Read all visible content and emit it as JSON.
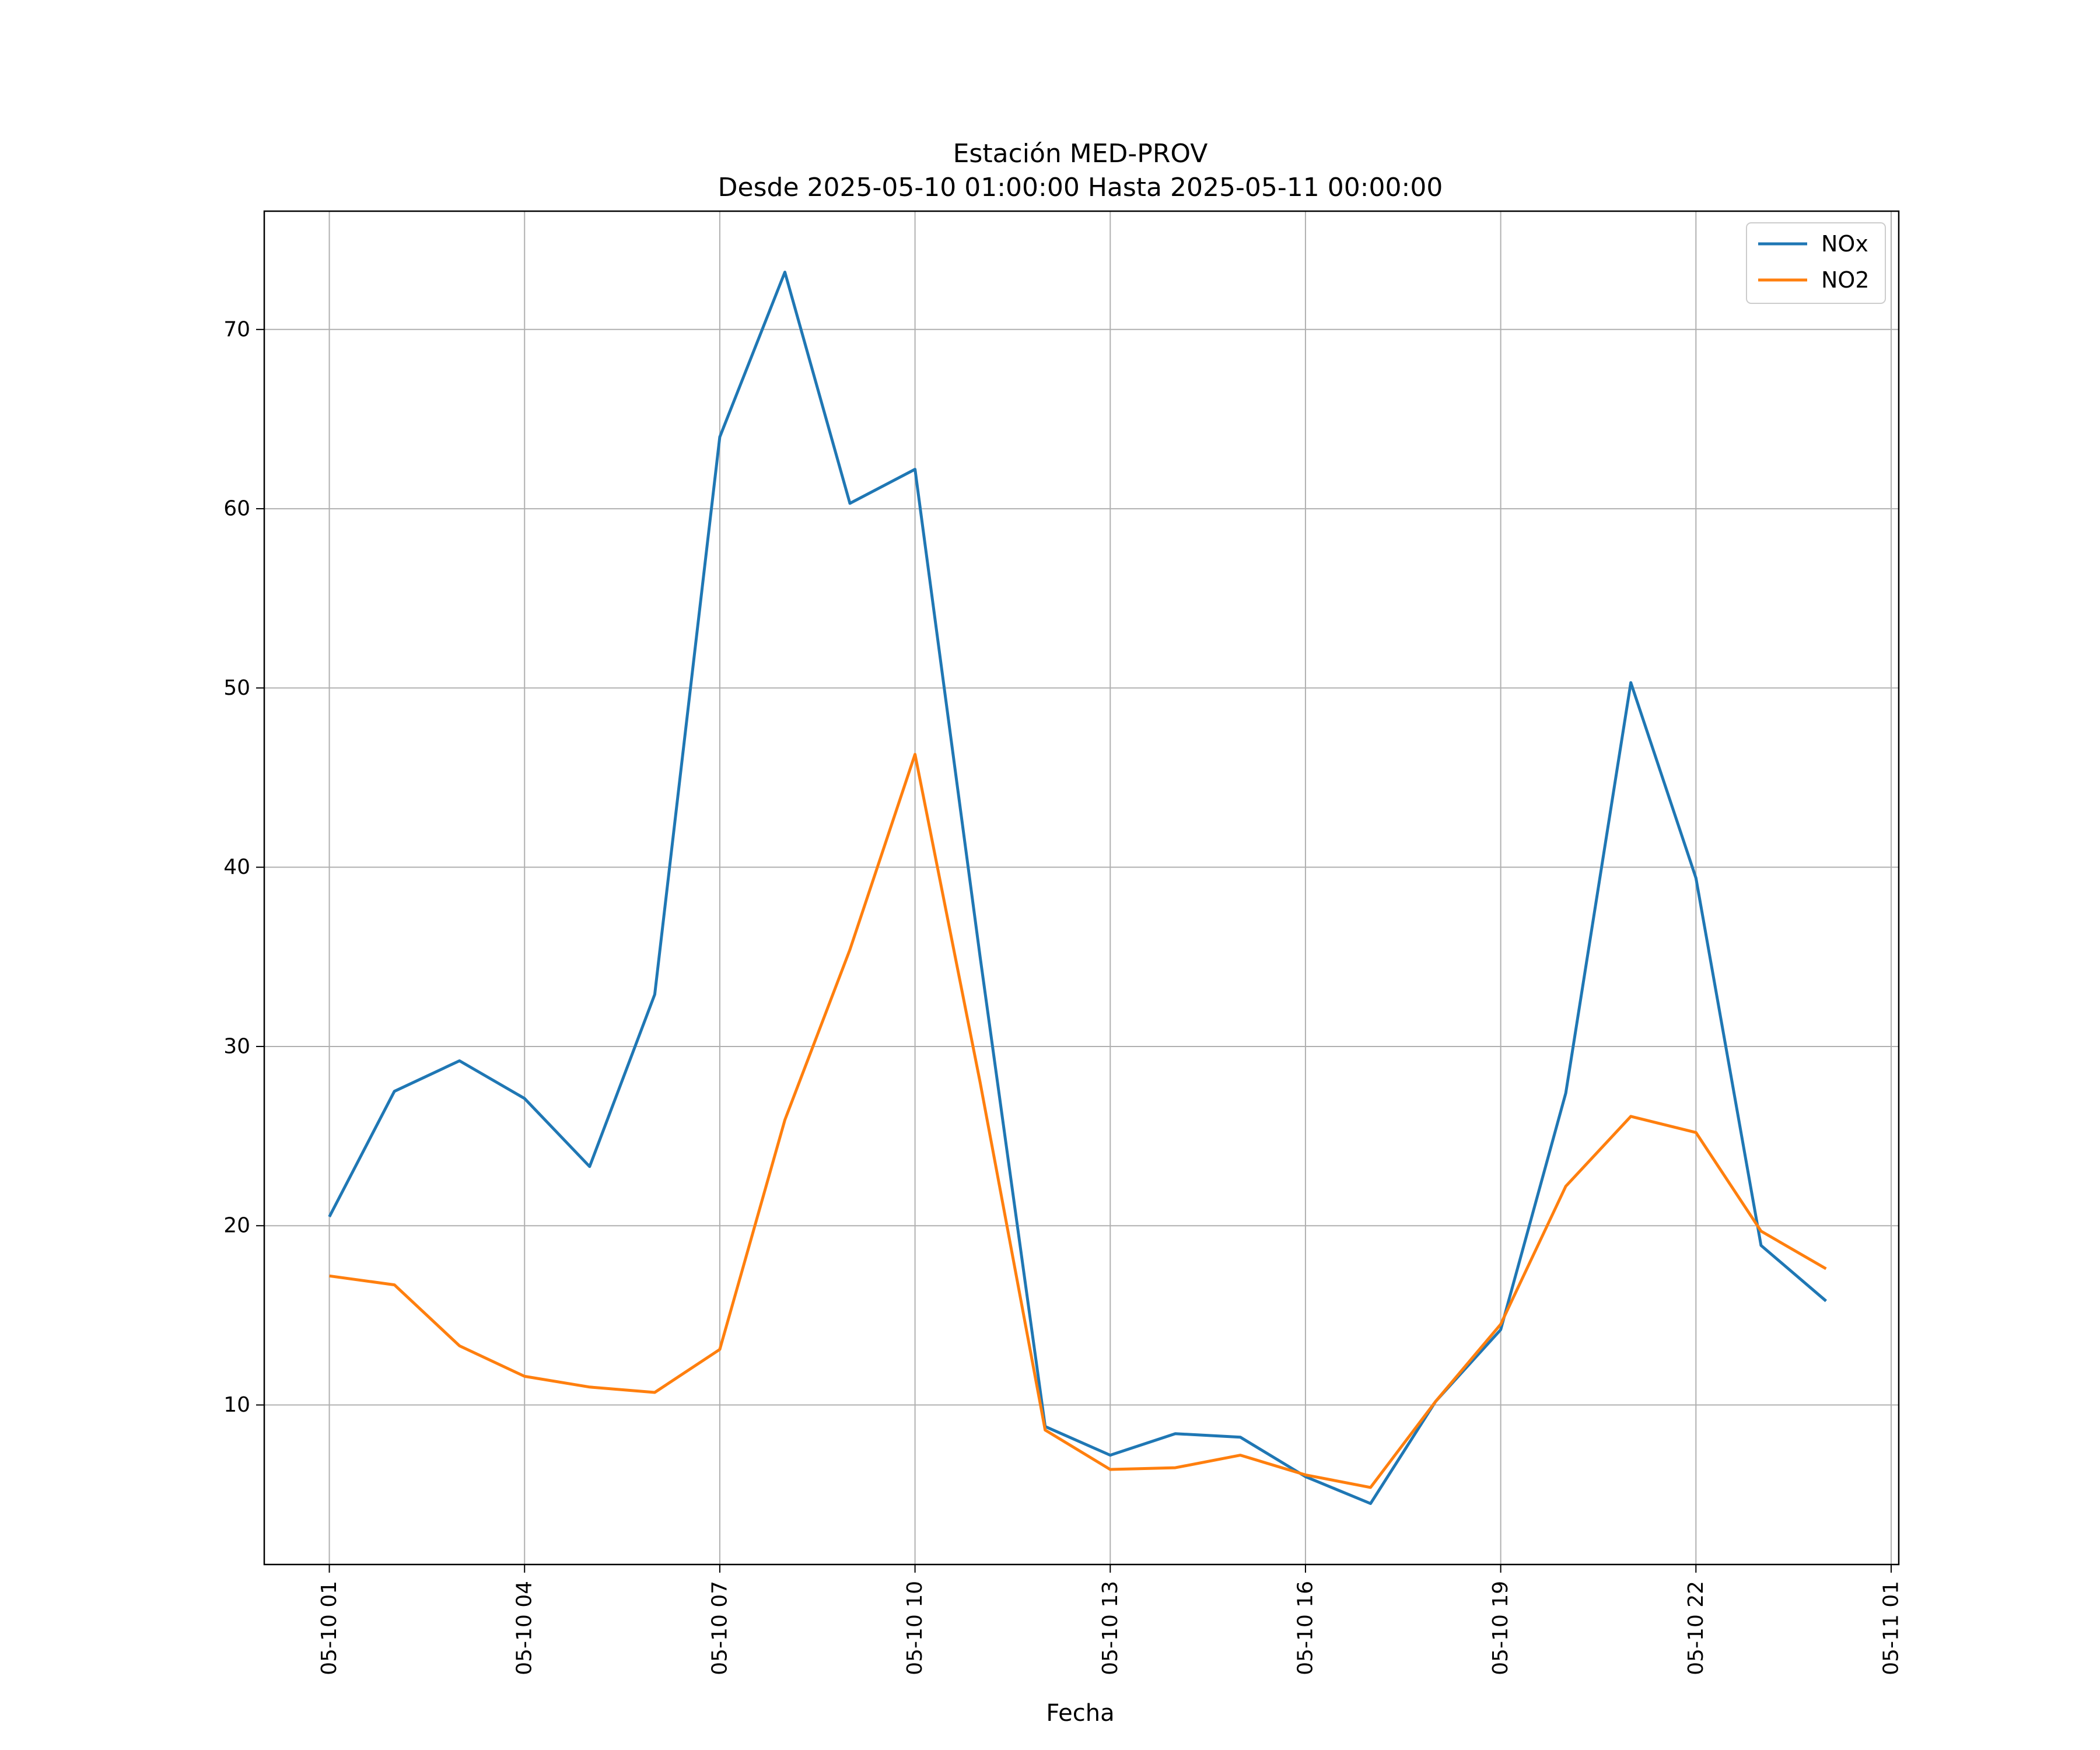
{
  "chart_data": {
    "type": "line",
    "title": "Estación MED-PROV",
    "subtitle": "Desde 2025-05-10 01:00:00 Hasta 2025-05-11 00:00:00",
    "xlabel": "Fecha",
    "ylabel": "",
    "x": [
      "2025-05-10 01:00",
      "2025-05-10 02:00",
      "2025-05-10 03:00",
      "2025-05-10 04:00",
      "2025-05-10 05:00",
      "2025-05-10 06:00",
      "2025-05-10 07:00",
      "2025-05-10 08:00",
      "2025-05-10 09:00",
      "2025-05-10 10:00",
      "2025-05-10 11:00",
      "2025-05-10 12:00",
      "2025-05-10 13:00",
      "2025-05-10 14:00",
      "2025-05-10 15:00",
      "2025-05-10 16:00",
      "2025-05-10 17:00",
      "2025-05-10 18:00",
      "2025-05-10 19:00",
      "2025-05-10 20:00",
      "2025-05-10 21:00",
      "2025-05-10 22:00",
      "2025-05-10 23:00",
      "2025-05-11 00:00"
    ],
    "xlim": [
      "2025-05-10 00:00",
      "2025-05-11 01:07"
    ],
    "xticks": [
      "2025-05-10 01:00",
      "2025-05-10 04:00",
      "2025-05-10 07:00",
      "2025-05-10 10:00",
      "2025-05-10 13:00",
      "2025-05-10 16:00",
      "2025-05-10 19:00",
      "2025-05-10 22:00",
      "2025-05-11 01:00"
    ],
    "xtick_labels": [
      "05-10 01",
      "05-10 04",
      "05-10 07",
      "05-10 10",
      "05-10 13",
      "05-10 16",
      "05-10 19",
      "05-10 22",
      "05-11 01"
    ],
    "ylim": [
      1.1,
      76.6
    ],
    "yticks": [
      10,
      20,
      30,
      40,
      50,
      60,
      70
    ],
    "grid": true,
    "legend_position": "top-right",
    "series": [
      {
        "name": "NOx",
        "color": "#1f77b4",
        "values": [
          20.5,
          27.5,
          29.2,
          27.1,
          23.3,
          32.9,
          64.0,
          73.2,
          60.3,
          62.2,
          35.0,
          8.8,
          7.2,
          8.4,
          8.2,
          6.0,
          4.5,
          10.2,
          14.2,
          27.4,
          50.3,
          39.4,
          18.9,
          15.8
        ]
      },
      {
        "name": "NO2",
        "color": "#ff7f0e",
        "values": [
          17.2,
          16.7,
          13.3,
          11.6,
          11.0,
          10.7,
          13.1,
          25.9,
          35.4,
          46.3,
          28.0,
          8.6,
          6.4,
          6.5,
          7.2,
          6.1,
          5.4,
          10.2,
          14.5,
          22.2,
          26.1,
          25.2,
          19.7,
          17.6
        ]
      }
    ]
  }
}
